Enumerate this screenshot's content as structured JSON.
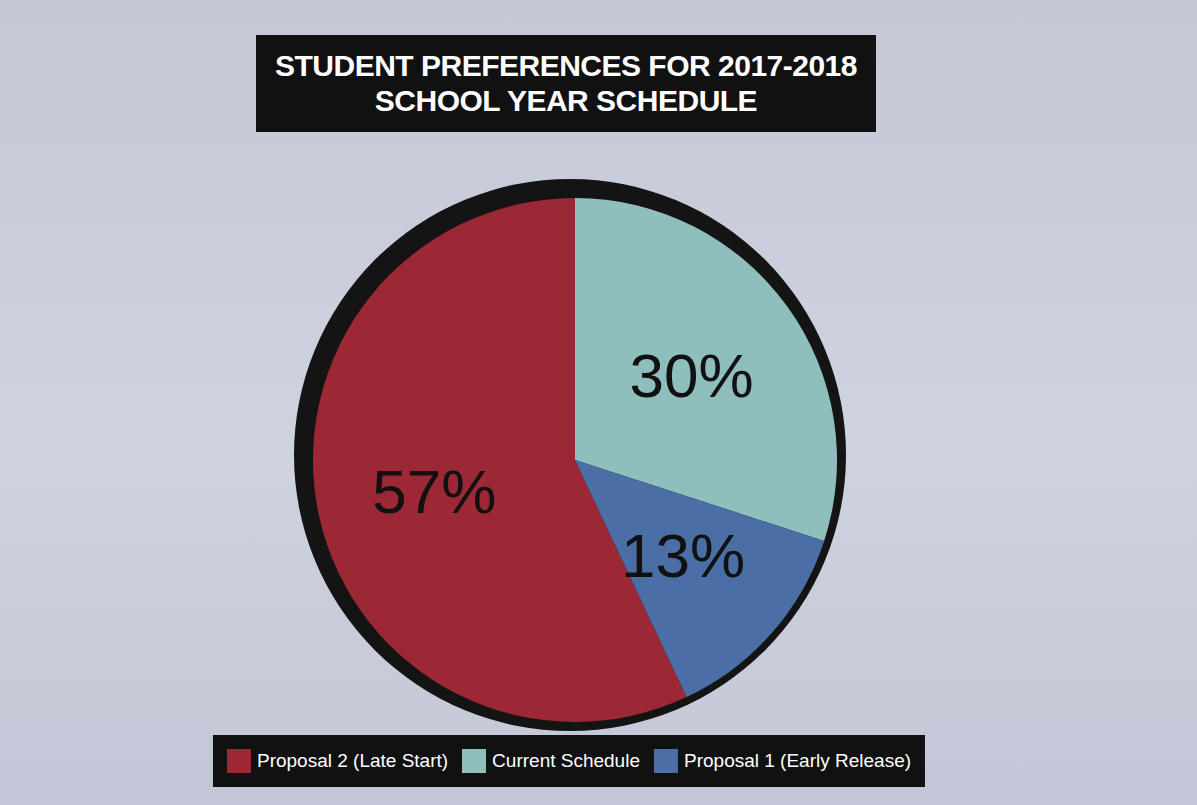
{
  "chart_data": {
    "type": "pie",
    "title": "STUDENT PREFERENCES FOR 2017-2018 SCHOOL YEAR SCHEDULE",
    "categories": [
      "Proposal 2 (Late Start)",
      "Current Schedule",
      "Proposal 1 (Early Release)"
    ],
    "values": [
      57,
      30,
      13
    ],
    "value_labels": [
      "57%",
      "30%",
      "13%"
    ],
    "colors": [
      "#9b2834",
      "#8fbfbc",
      "#4a6fa6"
    ],
    "data_labels": true,
    "legend": "bottom"
  }
}
